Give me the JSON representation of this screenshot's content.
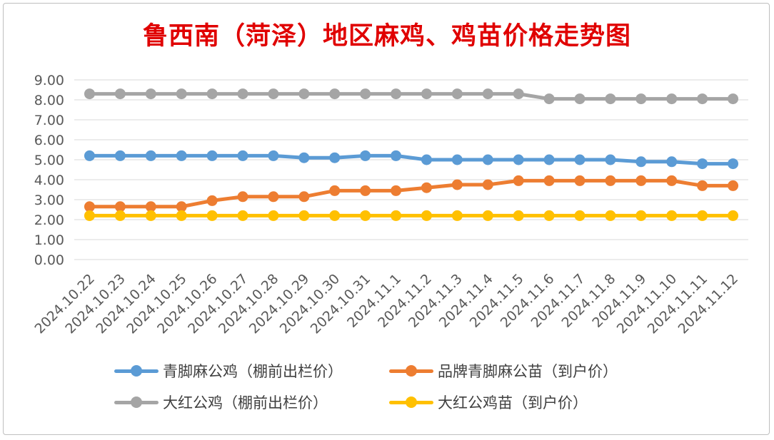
{
  "title": "鲁西南（菏泽）地区麻鸡、鸡苗价格走势图",
  "chart_data": {
    "type": "line",
    "title": "鲁西南（菏泽）地区麻鸡、鸡苗价格走势图",
    "xlabel": "",
    "ylabel": "",
    "ylim": [
      0,
      9
    ],
    "yticks": [
      "0.00",
      "1.00",
      "2.00",
      "3.00",
      "4.00",
      "5.00",
      "6.00",
      "7.00",
      "8.00",
      "9.00"
    ],
    "grid": true,
    "legend_position": "bottom",
    "categories": [
      "2024.10.22",
      "2024.10.23",
      "2024.10.24",
      "2024.10.25",
      "2024.10.26",
      "2024.10.27",
      "2024.10.28",
      "2024.10.29",
      "2024.10.30",
      "2024.10.31",
      "2024.11.1",
      "2024.11.2",
      "2024.11.3",
      "2024.11.4",
      "2024.11.5",
      "2024.11.6",
      "2024.11.7",
      "2024.11.8",
      "2024.11.9",
      "2024.11.10",
      "2024.11.11",
      "2024.11.12"
    ],
    "series": [
      {
        "name": "青脚麻公鸡（棚前出栏价）",
        "color": "#5b9bd5",
        "values": [
          5.2,
          5.2,
          5.2,
          5.2,
          5.2,
          5.2,
          5.2,
          5.1,
          5.1,
          5.2,
          5.2,
          5.0,
          5.0,
          5.0,
          5.0,
          5.0,
          5.0,
          5.0,
          4.9,
          4.9,
          4.8,
          4.8
        ]
      },
      {
        "name": "品牌青脚麻公苗（到户价）",
        "color": "#ed7d31",
        "values": [
          2.65,
          2.65,
          2.65,
          2.65,
          2.95,
          3.15,
          3.15,
          3.15,
          3.45,
          3.45,
          3.45,
          3.6,
          3.75,
          3.75,
          3.95,
          3.95,
          3.95,
          3.95,
          3.95,
          3.95,
          3.7,
          3.7
        ]
      },
      {
        "name": "大红公鸡（棚前出栏价）",
        "color": "#a5a5a5",
        "values": [
          8.3,
          8.3,
          8.3,
          8.3,
          8.3,
          8.3,
          8.3,
          8.3,
          8.3,
          8.3,
          8.3,
          8.3,
          8.3,
          8.3,
          8.3,
          8.05,
          8.05,
          8.05,
          8.05,
          8.05,
          8.05,
          8.05
        ]
      },
      {
        "name": "大红公鸡苗（到户价）",
        "color": "#ffc000",
        "values": [
          2.2,
          2.2,
          2.2,
          2.2,
          2.2,
          2.2,
          2.2,
          2.2,
          2.2,
          2.2,
          2.2,
          2.2,
          2.2,
          2.2,
          2.2,
          2.2,
          2.2,
          2.2,
          2.2,
          2.2,
          2.2,
          2.2
        ]
      }
    ]
  },
  "legend": [
    {
      "label": "青脚麻公鸡（棚前出栏价）",
      "color": "#5b9bd5"
    },
    {
      "label": "品牌青脚麻公苗（到户价）",
      "color": "#ed7d31"
    },
    {
      "label": "大红公鸡（棚前出栏价）",
      "color": "#a5a5a5"
    },
    {
      "label": "大红公鸡苗（到户价）",
      "color": "#ffc000"
    }
  ]
}
